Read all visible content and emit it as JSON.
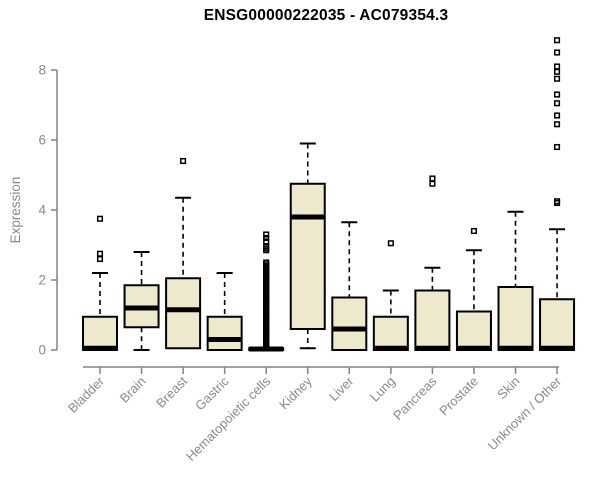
{
  "chart_data": {
    "type": "boxplot",
    "title": "ENSG00000222035 - AC079354.3",
    "xlabel": "",
    "ylabel": "Expression",
    "yticks": [
      0,
      2,
      4,
      6,
      8
    ],
    "ylim": [
      0,
      8.9
    ],
    "grid": false,
    "legend": "none",
    "categories": [
      "Bladder",
      "Brain",
      "Breast",
      "Gastric",
      "Hematopoietic cells",
      "Kidney",
      "Liver",
      "Lung",
      "Pancreas",
      "Prostate",
      "Skin",
      "Unknown / Other"
    ],
    "series": [
      {
        "category": "Bladder",
        "whisker_low": 0,
        "q1": 0,
        "median": 0.05,
        "q3": 0.95,
        "whisker_high": 2.2,
        "outliers": [
          2.6,
          2.75,
          3.75
        ]
      },
      {
        "category": "Brain",
        "whisker_low": 0,
        "q1": 0.65,
        "median": 1.2,
        "q3": 1.85,
        "whisker_high": 2.8,
        "outliers": []
      },
      {
        "category": "Breast",
        "whisker_low": 0.05,
        "q1": 0.05,
        "median": 1.15,
        "q3": 2.05,
        "whisker_high": 4.35,
        "outliers": [
          5.4
        ]
      },
      {
        "category": "Gastric",
        "whisker_low": 0,
        "q1": 0,
        "median": 0.3,
        "q3": 0.95,
        "whisker_high": 2.2,
        "outliers": []
      },
      {
        "category": "Hematopoietic cells",
        "whisker_low": 0,
        "q1": 0,
        "median": 0.03,
        "q3": 0.05,
        "whisker_high": 0.05,
        "outliers": [
          0.05,
          0.1,
          0.15,
          0.2,
          0.25,
          0.3,
          0.35,
          0.4,
          0.45,
          0.5,
          0.55,
          0.6,
          0.65,
          0.7,
          0.75,
          0.8,
          0.85,
          0.9,
          0.95,
          1.0,
          1.05,
          1.1,
          1.15,
          1.2,
          1.25,
          1.3,
          1.35,
          1.4,
          1.45,
          1.5,
          1.55,
          1.6,
          1.65,
          1.7,
          1.75,
          1.8,
          1.85,
          1.9,
          1.95,
          2.0,
          2.05,
          2.1,
          2.15,
          2.2,
          2.25,
          2.3,
          2.35,
          2.4,
          2.45,
          2.5,
          2.85,
          2.9,
          2.95,
          3.1,
          3.2,
          3.3
        ]
      },
      {
        "category": "Kidney",
        "whisker_low": 0.05,
        "q1": 0.6,
        "median": 3.8,
        "q3": 4.75,
        "whisker_high": 5.9,
        "outliers": []
      },
      {
        "category": "Liver",
        "whisker_low": 0,
        "q1": 0,
        "median": 0.6,
        "q3": 1.5,
        "whisker_high": 3.65,
        "outliers": []
      },
      {
        "category": "Lung",
        "whisker_low": 0,
        "q1": 0,
        "median": 0.05,
        "q3": 0.95,
        "whisker_high": 1.7,
        "outliers": [
          3.05
        ]
      },
      {
        "category": "Pancreas",
        "whisker_low": 0,
        "q1": 0,
        "median": 0.05,
        "q3": 1.7,
        "whisker_high": 2.35,
        "outliers": [
          4.75,
          4.9
        ]
      },
      {
        "category": "Prostate",
        "whisker_low": 0,
        "q1": 0,
        "median": 0.05,
        "q3": 1.1,
        "whisker_high": 2.85,
        "outliers": [
          3.4
        ]
      },
      {
        "category": "Skin",
        "whisker_low": 0,
        "q1": 0,
        "median": 0.05,
        "q3": 1.8,
        "whisker_high": 3.95,
        "outliers": []
      },
      {
        "category": "Unknown / Other",
        "whisker_low": 0,
        "q1": 0,
        "median": 0.05,
        "q3": 1.45,
        "whisker_high": 3.45,
        "outliers": [
          4.2,
          4.25,
          5.8,
          6.45,
          6.7,
          7.05,
          7.3,
          7.75,
          7.95,
          8.1,
          8.5,
          8.85
        ]
      }
    ],
    "colors": {
      "box_fill": "#EEE8CD",
      "box_border": "#000000",
      "median": "#000000",
      "outlier": "#000000",
      "axis": "#848484",
      "tick_label": "#8a8a8a",
      "title": "#000000",
      "background": "#ffffff"
    }
  }
}
